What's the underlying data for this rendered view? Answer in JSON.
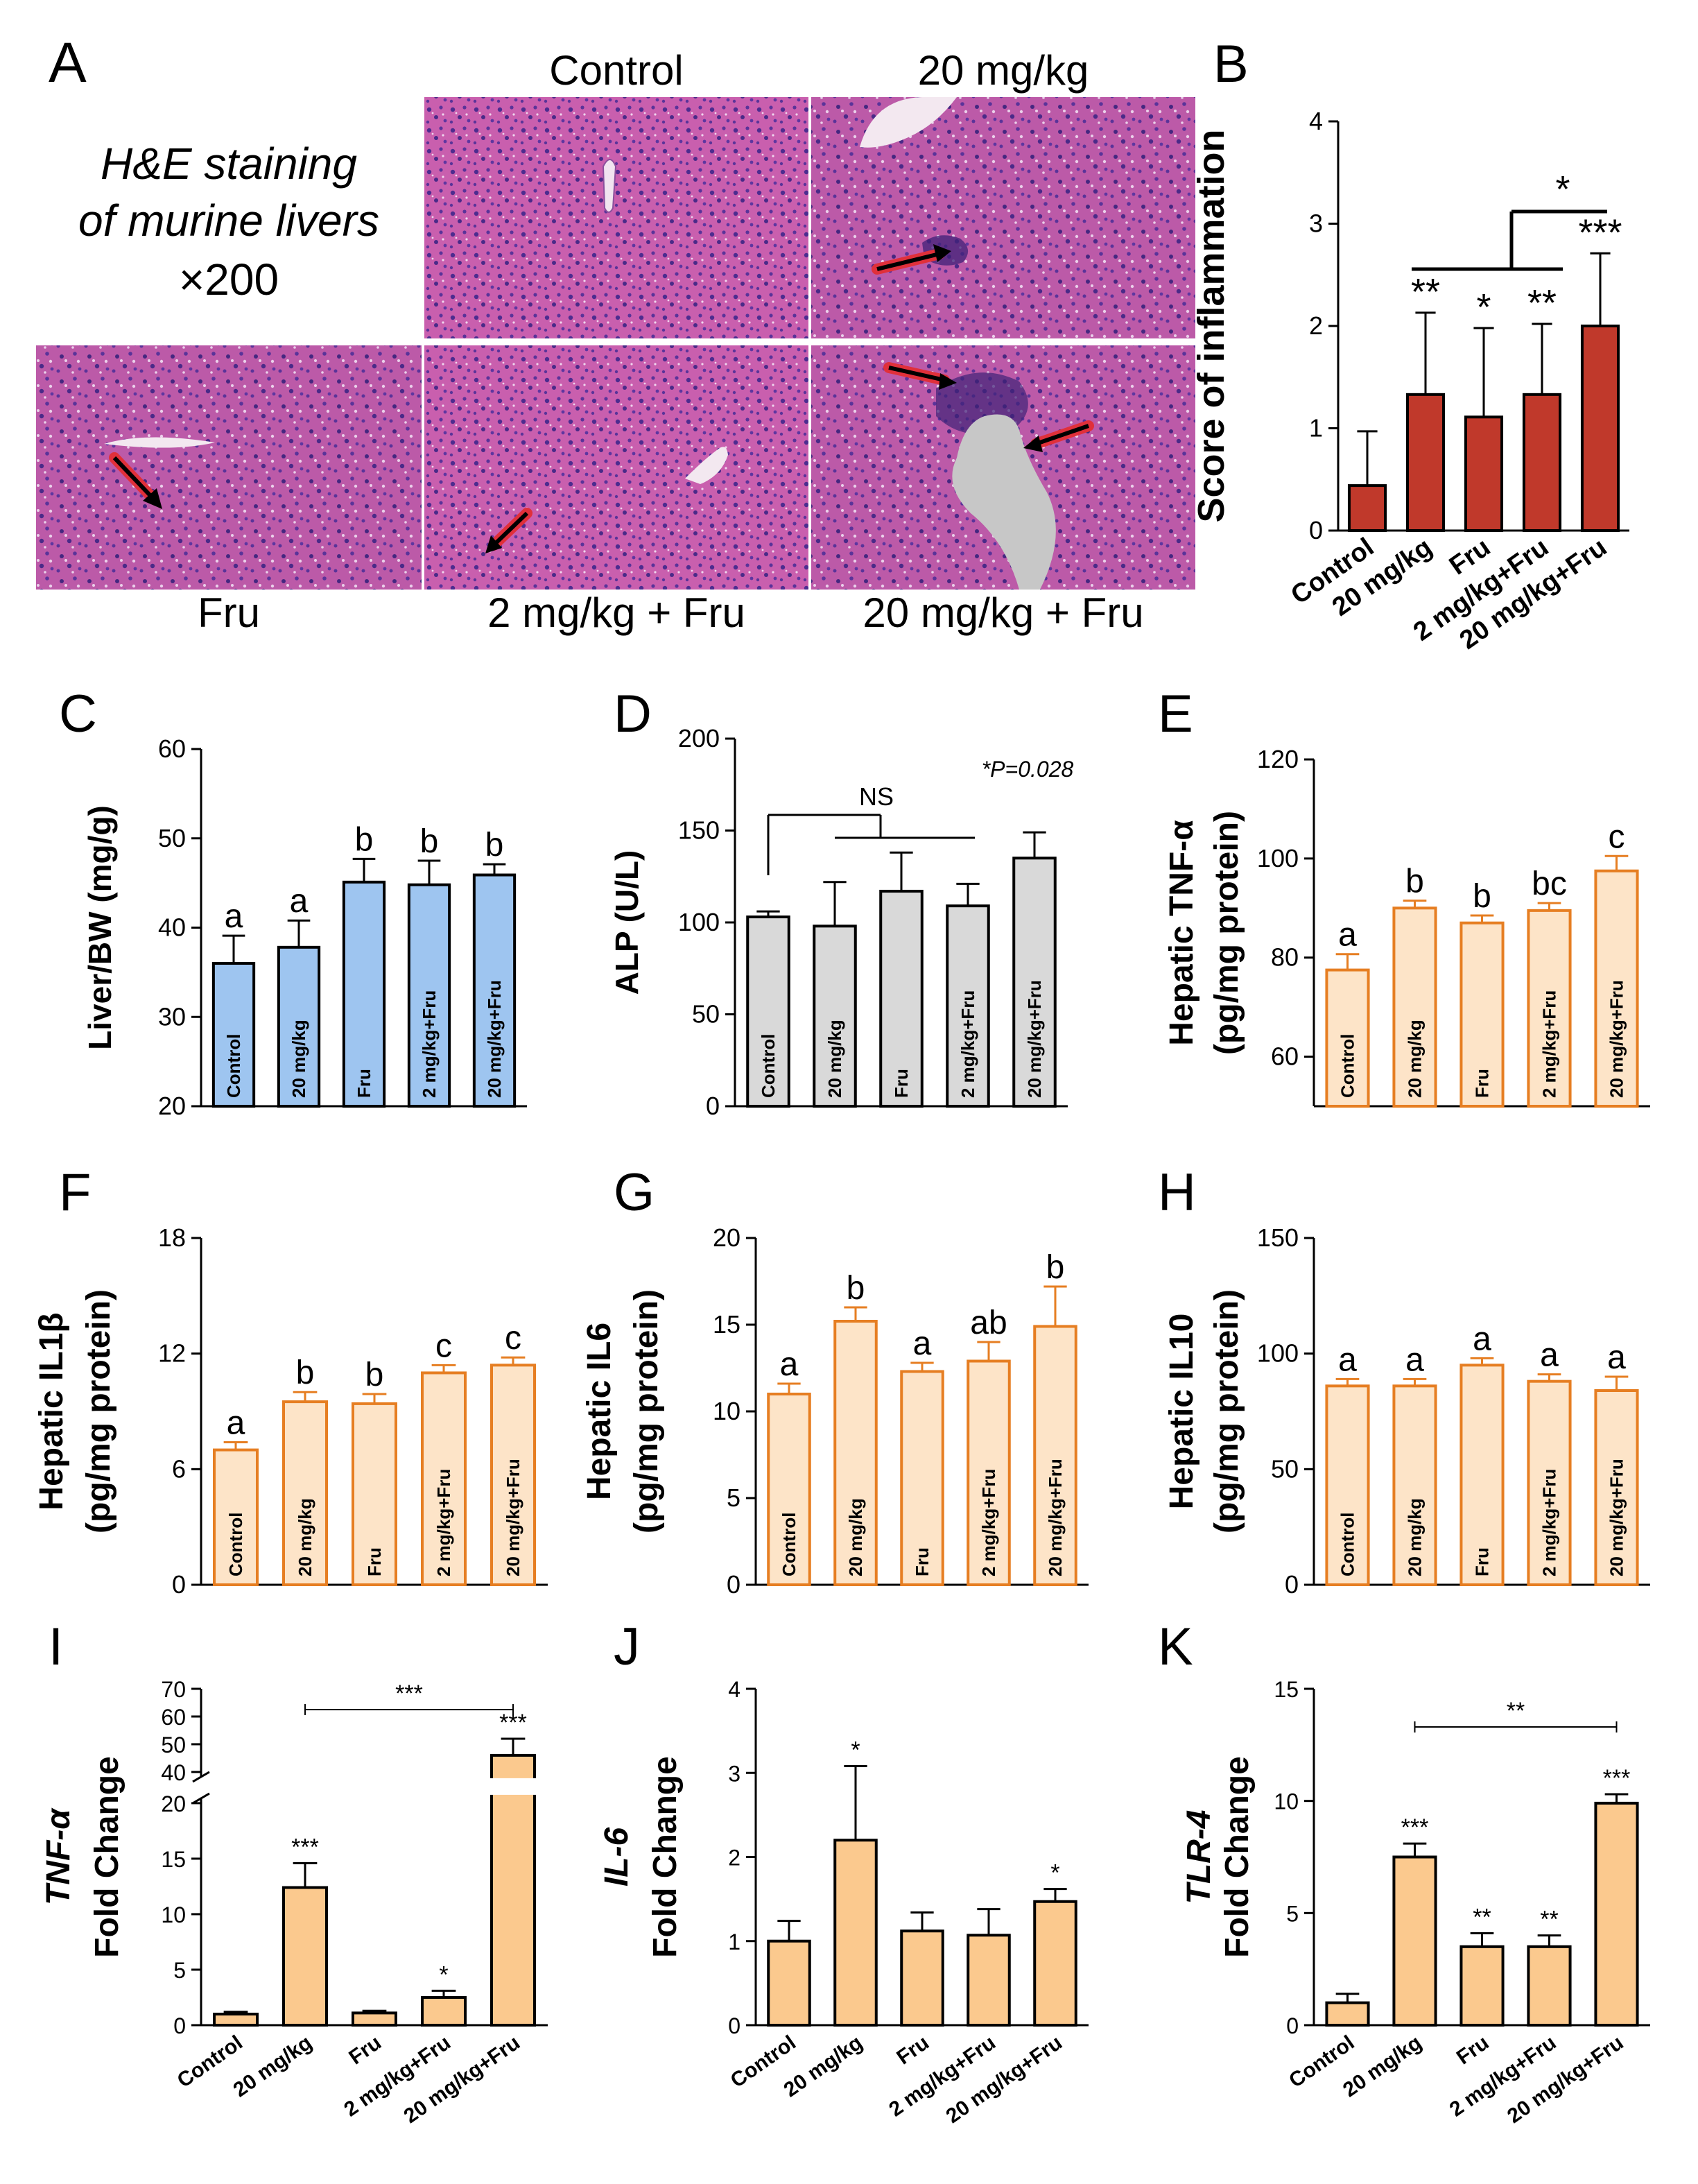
{
  "panel_a": {
    "letter": "A",
    "caption_lines": [
      "H&E staining",
      "of murine livers",
      "×200"
    ],
    "tiles": [
      {
        "label": "Control"
      },
      {
        "label": "20 mg/kg"
      },
      {
        "label": "Fru"
      },
      {
        "label": "2 mg/kg + Fru"
      },
      {
        "label": "20 mg/kg + Fru"
      }
    ]
  },
  "chart_data": [
    {
      "id": "B",
      "type": "bar",
      "letter": "B",
      "ylabel": [
        "Score of inflammation"
      ],
      "ylim": [
        0,
        4
      ],
      "ticks": [
        0,
        1,
        2,
        3,
        4
      ],
      "categories": [
        "Control",
        "20 mg/kg",
        "Fru",
        "2 mg/kg+Fru",
        "20 mg/kg+Fru"
      ],
      "values": [
        0.44,
        1.33,
        1.11,
        1.33,
        2.0
      ],
      "errors": [
        0.53,
        0.8,
        0.87,
        0.69,
        0.71
      ],
      "labels": [
        "",
        "**",
        "*",
        "**",
        "***"
      ],
      "annotations": [
        "*"
      ],
      "fill": "#c0392b",
      "stroke": "#000000",
      "category_position": "below-rotated"
    },
    {
      "id": "C",
      "type": "bar",
      "letter": "C",
      "ylabel": [
        "Liver/BW (mg/g)"
      ],
      "ylim": [
        20,
        60
      ],
      "ticks": [
        20,
        30,
        40,
        50,
        60
      ],
      "categories": [
        "Control",
        "20 mg/kg",
        "Fru",
        "2 mg/kg+Fru",
        "20 mg/kg+Fru"
      ],
      "values": [
        36.0,
        37.8,
        45.1,
        44.8,
        45.9
      ],
      "errors": [
        3.1,
        3.0,
        2.6,
        2.7,
        1.2
      ],
      "labels": [
        "a",
        "a",
        "b",
        "b",
        "b"
      ],
      "fill": "#9ec5f0",
      "stroke": "#000000",
      "category_position": "inside"
    },
    {
      "id": "D",
      "type": "bar",
      "letter": "D",
      "ylabel": [
        "ALP (U/L)"
      ],
      "ylim": [
        0,
        200
      ],
      "ticks": [
        0,
        50,
        100,
        150,
        200
      ],
      "categories": [
        "Control",
        "20 mg/kg",
        "Fru",
        "2 mg/kg+Fru",
        "20 mg/kg+Fru"
      ],
      "values": [
        103,
        98,
        117,
        109,
        135
      ],
      "errors": [
        3,
        24,
        21,
        12,
        14
      ],
      "labels": [
        "",
        "",
        "",
        "",
        ""
      ],
      "annotations": [
        "NS",
        "*P=0.028"
      ],
      "fill": "#d9d9d9",
      "stroke": "#000000",
      "category_position": "inside"
    },
    {
      "id": "E",
      "type": "bar",
      "letter": "E",
      "ylabel": [
        "Hepatic TNF-α",
        "(pg/mg protein)"
      ],
      "ylim": [
        50,
        120
      ],
      "ticks": [
        60,
        80,
        100,
        120
      ],
      "categories": [
        "Control",
        "20 mg/kg",
        "Fru",
        "2 mg/kg+Fru",
        "20 mg/kg+Fru"
      ],
      "values": [
        77.5,
        90.0,
        87.0,
        89.5,
        97.5
      ],
      "errors": [
        3.2,
        1.5,
        1.5,
        1.5,
        3.0
      ],
      "labels": [
        "a",
        "b",
        "b",
        "bc",
        "c"
      ],
      "fill": "#fde4c8",
      "stroke": "#e67e22",
      "category_position": "inside"
    },
    {
      "id": "F",
      "type": "bar",
      "letter": "F",
      "ylabel": [
        "Hepatic IL1β",
        "(pg/mg protein)"
      ],
      "ylim": [
        0,
        18
      ],
      "ticks": [
        0,
        6,
        12,
        18
      ],
      "categories": [
        "Control",
        "20 mg/kg",
        "Fru",
        "2 mg/kg+Fru",
        "20 mg/kg+Fru"
      ],
      "values": [
        7.0,
        9.5,
        9.4,
        11.0,
        11.4
      ],
      "errors": [
        0.4,
        0.5,
        0.5,
        0.4,
        0.4
      ],
      "labels": [
        "a",
        "b",
        "b",
        "c",
        "c"
      ],
      "fill": "#fde4c8",
      "stroke": "#e67e22",
      "category_position": "inside"
    },
    {
      "id": "G",
      "type": "bar",
      "letter": "G",
      "ylabel": [
        "Hepatic IL6",
        "(pg/mg protein)"
      ],
      "ylim": [
        0,
        20
      ],
      "ticks": [
        0,
        5,
        10,
        15,
        20
      ],
      "categories": [
        "Control",
        "20 mg/kg",
        "Fru",
        "2 mg/kg+Fru",
        "20 mg/kg+Fru"
      ],
      "values": [
        11.0,
        15.2,
        12.3,
        12.9,
        14.9
      ],
      "errors": [
        0.6,
        0.8,
        0.5,
        1.1,
        2.3
      ],
      "labels": [
        "a",
        "b",
        "a",
        "ab",
        "b"
      ],
      "fill": "#fde4c8",
      "stroke": "#e67e22",
      "category_position": "inside"
    },
    {
      "id": "H",
      "type": "bar",
      "letter": "H",
      "ylabel": [
        "Hepatic IL10",
        "(pg/mg protein)"
      ],
      "ylim": [
        0,
        150
      ],
      "ticks": [
        0,
        50,
        100,
        150
      ],
      "categories": [
        "Control",
        "20 mg/kg",
        "Fru",
        "2 mg/kg+Fru",
        "20 mg/kg+Fru"
      ],
      "values": [
        86,
        86,
        95,
        88,
        84
      ],
      "errors": [
        3,
        3,
        3,
        3,
        6
      ],
      "labels": [
        "a",
        "a",
        "a",
        "a",
        "a"
      ],
      "fill": "#fde4c8",
      "stroke": "#e67e22",
      "category_position": "inside"
    },
    {
      "id": "I",
      "type": "bar",
      "letter": "I",
      "ylabel": [
        "TNF-α",
        "Fold Change"
      ],
      "broken_axis": {
        "lower": [
          0,
          20
        ],
        "upper": [
          40,
          70
        ]
      },
      "ticks_lower": [
        0,
        5,
        10,
        15,
        20
      ],
      "ticks_upper": [
        40,
        50,
        60,
        70
      ],
      "categories": [
        "Control",
        "20 mg/kg",
        "Fru",
        "2 mg/kg+Fru",
        "20 mg/kg+Fru"
      ],
      "values": [
        1.0,
        12.4,
        1.1,
        2.5,
        46.0
      ],
      "errors": [
        0.2,
        2.2,
        0.2,
        0.6,
        6.0
      ],
      "labels": [
        "",
        "***",
        "",
        "*",
        "***"
      ],
      "annotations": [
        "***"
      ],
      "fill": "#fbc98e",
      "stroke": "#000000",
      "category_position": "below-rotated"
    },
    {
      "id": "J",
      "type": "bar",
      "letter": "J",
      "ylabel": [
        "IL-6",
        "Fold Change"
      ],
      "ylim": [
        0,
        4
      ],
      "ticks": [
        0,
        1,
        2,
        3,
        4
      ],
      "categories": [
        "Control",
        "20 mg/kg",
        "Fru",
        "2 mg/kg+Fru",
        "20 mg/kg+Fru"
      ],
      "values": [
        1.0,
        2.2,
        1.12,
        1.07,
        1.47
      ],
      "errors": [
        0.24,
        0.88,
        0.22,
        0.31,
        0.15
      ],
      "labels": [
        "",
        "*",
        "",
        "",
        "*"
      ],
      "fill": "#fbc98e",
      "stroke": "#000000",
      "category_position": "below-rotated"
    },
    {
      "id": "K",
      "type": "bar",
      "letter": "K",
      "ylabel": [
        "TLR-4",
        "Fold Change"
      ],
      "ylim": [
        0,
        15
      ],
      "ticks": [
        0,
        5,
        10,
        15
      ],
      "categories": [
        "Control",
        "20 mg/kg",
        "Fru",
        "2 mg/kg+Fru",
        "20 mg/kg+Fru"
      ],
      "values": [
        1.0,
        7.5,
        3.5,
        3.5,
        9.9
      ],
      "errors": [
        0.4,
        0.6,
        0.6,
        0.5,
        0.4
      ],
      "labels": [
        "",
        "***",
        "**",
        "**",
        "***"
      ],
      "annotations": [
        "**"
      ],
      "fill": "#fbc98e",
      "stroke": "#000000",
      "category_position": "below-rotated"
    }
  ]
}
